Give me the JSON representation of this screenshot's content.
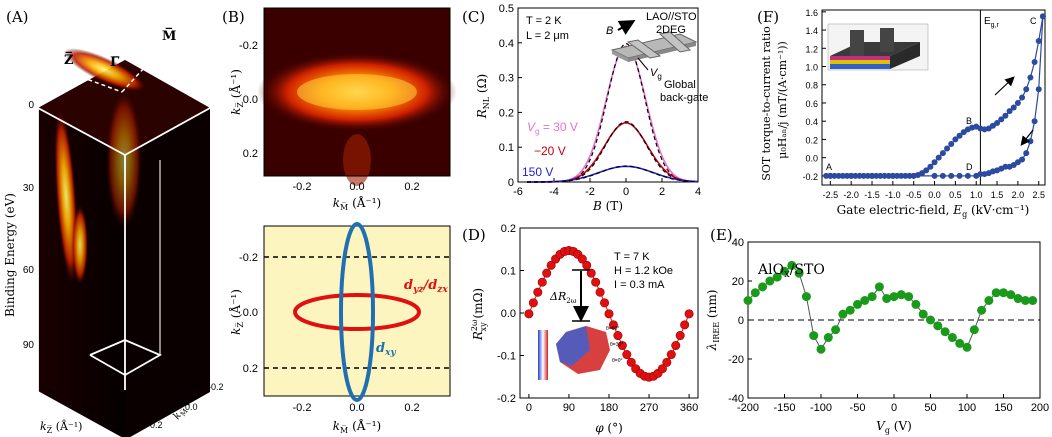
{
  "panels": {
    "A": {
      "label": "(A)",
      "ylabel": "Binding Energy (eV)",
      "y_ticks": [
        "0",
        "30",
        "60",
        "90"
      ],
      "axes_top": [
        "Z̅",
        "Γ̅",
        "M̅"
      ],
      "kz_label": "k",
      "kz_sub": "Z̅",
      "kz_unit": "(Å⁻¹)",
      "kz_ticks": [
        "-0.2",
        "0.0",
        "0.2"
      ],
      "km_label": "k",
      "km_sub": "M̅",
      "km_unit": "(Å⁻¹)",
      "km_ticks": [
        "0.2",
        "0.0",
        "-0.2"
      ]
    },
    "B": {
      "label": "(B)",
      "top_y_ticks": [
        "-0.2",
        "0.0",
        "0.2"
      ],
      "top_y_label": "k",
      "top_y_sub": "Z̅",
      "top_y_unit": "(Å⁻¹)",
      "top_x_ticks": [
        "-0.2",
        "0.0",
        "0.2"
      ],
      "top_x_label": "k",
      "top_x_sub": "M̅",
      "top_x_unit": "(Å⁻¹)",
      "bot_y_ticks": [
        "-0.2",
        "0.0",
        "0.2"
      ],
      "bot_x_ticks": [
        "-0.2",
        "0.0",
        "0.2"
      ],
      "orbital_1": "d",
      "orbital_1_sub": "yz",
      "orbital_1_sep": "/",
      "orbital_1b": "d",
      "orbital_1b_sub": "zx",
      "orbital_2": "d",
      "orbital_2_sub": "xy",
      "colors": {
        "ellipse_red": "#e01010",
        "ellipse_blue": "#1f6fb2",
        "bg": "#fdf5c0"
      }
    },
    "C": {
      "label": "(C)",
      "T_text": "T = 2 K",
      "L_text": "L = 2 μm",
      "inset_title": "LAO//STO",
      "inset_2deg": "2DEG",
      "inset_B": "B",
      "inset_Vg": "V",
      "inset_Vg_sub": "g",
      "inset_gate_1": "Global",
      "inset_gate_2": "back-gate",
      "series_labels": [
        "V",
        "= 30 V",
        "−20 V",
        "150 V"
      ],
      "series_label_sub": "g"
    },
    "D": {
      "label": "(D)",
      "T_text": "T = 7 K",
      "H_text": "H = 1.2 kOe",
      "I_text": "I = 0.3 mA",
      "delta_label": "ΔR",
      "delta_sub": "2ω",
      "inset_angle_labels": [
        "θ=60°",
        "θ=30°",
        "θ=0°"
      ]
    },
    "E": {
      "label": "(E)",
      "annotation": "AlO",
      "annotation_sub": "x",
      "annotation_tail": "/STO"
    },
    "F": {
      "label": "(F)",
      "point_labels": [
        "A",
        "B",
        "C",
        "D"
      ],
      "vline_label": "E",
      "vline_sub": "g,r",
      "ylabel_line1": "SOT torque-to-current ratio ,",
      "ylabel_line2": "μ₀Hₐₙ/j (mT/(A·cm⁻¹))",
      "colors": {
        "series": "#2b4aa0"
      }
    }
  },
  "chart_data": [
    {
      "id": "C",
      "type": "line",
      "xlabel": "B (T)",
      "ylabel": "R_NL (Ω)",
      "xlim": [
        -6,
        4
      ],
      "ylim": [
        0,
        0.5
      ],
      "xticks": [
        "-6",
        "-4",
        "-2",
        "0",
        "2",
        "4"
      ],
      "yticks": [
        "0",
        "0.1",
        "0.2",
        "0.3",
        "0.4",
        "0.5"
      ],
      "series": [
        {
          "name": "V_g = 30 V",
          "color": "#e870d0",
          "peak": 0.39,
          "width": 1.1
        },
        {
          "name": "−20 V",
          "color": "#c00010",
          "peak": 0.17,
          "width": 1.2
        },
        {
          "name": "150 V",
          "color": "#2020d0",
          "peak": 0.045,
          "width": 1.5
        }
      ]
    },
    {
      "id": "D",
      "type": "scatter",
      "xlabel": "φ (°)",
      "ylabel": "R_xy^2ω (mΩ)",
      "xlim": [
        -20,
        380
      ],
      "ylim": [
        -0.2,
        0.2
      ],
      "xticks": [
        "0",
        "90",
        "180",
        "270",
        "360"
      ],
      "yticks": [
        "-0.2",
        "-0.1",
        "0.0",
        "0.1",
        "0.2"
      ],
      "amplitude": 0.149,
      "offset": -0.002,
      "phase_deg": 90,
      "step_deg": 10,
      "color": "#e01010"
    },
    {
      "id": "E",
      "type": "line",
      "xlabel": "V_g (V)",
      "ylabel": "λ_IREE (nm)",
      "xlim": [
        -200,
        200
      ],
      "ylim": [
        -40,
        40
      ],
      "xticks": [
        "-200",
        "-150",
        "-100",
        "-50",
        "0",
        "50",
        "100",
        "150",
        "200"
      ],
      "yticks": [
        "-40",
        "-20",
        "0",
        "20",
        "40"
      ],
      "color": "#1a9a1a",
      "x": [
        -200,
        -190,
        -180,
        -170,
        -160,
        -150,
        -140,
        -130,
        -120,
        -110,
        -100,
        -90,
        -80,
        -70,
        -60,
        -50,
        -40,
        -30,
        -20,
        -10,
        0,
        10,
        20,
        30,
        40,
        50,
        60,
        70,
        80,
        90,
        100,
        110,
        120,
        130,
        140,
        150,
        160,
        170,
        180,
        190
      ],
      "y": [
        10,
        14,
        17,
        20,
        22,
        25,
        28,
        24,
        12,
        -8,
        -15,
        -9,
        -5,
        3,
        5,
        8,
        10,
        12,
        17,
        11,
        12,
        13,
        12,
        8,
        3,
        0,
        -3,
        -6,
        -9,
        -12,
        -14,
        -5,
        5,
        10,
        14,
        14,
        13,
        11,
        10,
        10
      ]
    },
    {
      "id": "F",
      "type": "line",
      "xlabel": "Gate electric-field, E_g (kV·cm⁻¹)",
      "ylabel": "SOT torque-to-current ratio",
      "xlim": [
        -2.7,
        2.65
      ],
      "ylim": [
        -0.3,
        1.62
      ],
      "xticks": [
        "-2.5",
        "-2.0",
        "-1.5",
        "-1.0",
        "-0.5",
        "0.0",
        "0.5",
        "1.0",
        "1.5",
        "2.0",
        "2.5"
      ],
      "yticks": [
        "-0.2",
        "0.0",
        "0.2",
        "0.4",
        "0.6",
        "0.8",
        "1.0",
        "1.2",
        "1.4",
        "1.6"
      ],
      "vline_x": 1.1,
      "series": [
        {
          "name": "forward",
          "x": [
            -2.6,
            -2.5,
            -2.4,
            -2.3,
            -2.2,
            -2.1,
            -2.0,
            -1.9,
            -1.8,
            -1.7,
            -1.6,
            -1.5,
            -1.4,
            -1.3,
            -1.2,
            -1.1,
            -1.0,
            -0.9,
            -0.8,
            -0.7,
            -0.6,
            -0.5,
            -0.4,
            -0.3,
            -0.2,
            -0.1,
            0.0,
            0.1,
            0.2,
            0.3,
            0.4,
            0.5,
            0.6,
            0.7,
            0.8,
            0.9,
            1.0,
            1.1,
            1.2,
            1.3,
            1.4,
            1.5,
            1.6,
            1.7,
            1.8,
            1.9,
            2.0,
            2.1,
            2.2,
            2.3,
            2.4,
            2.5,
            2.6
          ],
          "y": [
            -0.2,
            -0.2,
            -0.2,
            -0.2,
            -0.2,
            -0.2,
            -0.2,
            -0.2,
            -0.2,
            -0.2,
            -0.2,
            -0.2,
            -0.2,
            -0.2,
            -0.2,
            -0.2,
            -0.2,
            -0.2,
            -0.2,
            -0.2,
            -0.2,
            -0.2,
            -0.19,
            -0.17,
            -0.14,
            -0.1,
            -0.05,
            0.0,
            0.05,
            0.1,
            0.15,
            0.2,
            0.24,
            0.28,
            0.31,
            0.33,
            0.34,
            0.32,
            0.31,
            0.32,
            0.35,
            0.38,
            0.42,
            0.46,
            0.51,
            0.55,
            0.6,
            0.66,
            0.75,
            0.88,
            1.05,
            1.28,
            1.55
          ]
        },
        {
          "name": "backward",
          "x": [
            2.6,
            2.5,
            2.4,
            2.3,
            2.2,
            2.1,
            2.0,
            1.9,
            1.8,
            1.7,
            1.6,
            1.5,
            1.4,
            1.3,
            1.2,
            1.1,
            1.0,
            0.8,
            0.6,
            0.4,
            0.2,
            0.0,
            -0.5,
            -1.0,
            -1.5,
            -2.0,
            -2.5
          ],
          "y": [
            1.55,
            0.75,
            0.4,
            0.18,
            0.05,
            -0.02,
            -0.05,
            -0.08,
            -0.1,
            -0.1,
            -0.12,
            -0.14,
            -0.15,
            -0.17,
            -0.18,
            -0.18,
            -0.2,
            -0.2,
            -0.2,
            -0.2,
            -0.2,
            -0.2,
            -0.2,
            -0.2,
            -0.2,
            -0.2,
            -0.2
          ]
        }
      ]
    }
  ]
}
